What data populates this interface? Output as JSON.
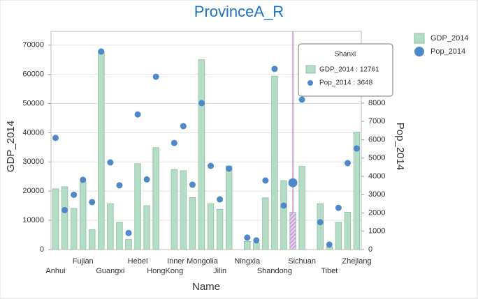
{
  "chart_data": {
    "type": "bar+scatter",
    "title": "ProvinceA_R",
    "x_label": "Name",
    "y_label": "GDP_2014",
    "y2_label": "Pop_2014",
    "categories": [
      "Anhui",
      null,
      null,
      "Fujian",
      null,
      null,
      "Guangxi",
      null,
      null,
      "Hebei",
      null,
      null,
      "HongKong",
      null,
      null,
      "Inner Mongolia",
      null,
      null,
      "Jilin",
      null,
      null,
      "Ningxia",
      null,
      null,
      "Shandong",
      null,
      null,
      "Sichuan",
      null,
      null,
      "Tibet",
      null,
      null,
      "Zhejiang"
    ],
    "series": [
      {
        "name": "GDP_2014",
        "type": "bar",
        "color": "#b5dcc6",
        "values": [
          20800,
          21500,
          14100,
          23400,
          6800,
          67800,
          15700,
          9300,
          3500,
          29400,
          15000,
          34900,
          null,
          27400,
          27000,
          17800,
          65000,
          15700,
          13800,
          28600,
          null,
          2800,
          2300,
          17700,
          59400,
          23600,
          12761,
          28500,
          null,
          15700,
          900,
          9300,
          12800,
          40200
        ]
      },
      {
        "name": "Pop_2014",
        "type": "scatter",
        "axis": "y2",
        "color": "#4f88c8",
        "values": [
          6100,
          2150,
          2990,
          3810,
          2590,
          10820,
          4760,
          3510,
          900,
          7380,
          3830,
          9440,
          null,
          5820,
          6740,
          3540,
          8000,
          4570,
          2740,
          4420,
          null,
          650,
          500,
          3770,
          9870,
          2400,
          3648,
          8190,
          null,
          1490,
          270,
          2280,
          4720,
          5520
        ]
      }
    ],
    "ylim": [
      0,
      74700
    ],
    "yticks": [
      0,
      10000,
      20000,
      30000,
      40000,
      50000,
      60000,
      70000
    ],
    "y2lim": [
      0,
      11920
    ],
    "y2ticks": [
      0,
      1000,
      2000,
      3000,
      4000,
      5000,
      6000,
      7000,
      8000
    ],
    "grid": true,
    "legend": "top-right",
    "tooltip": {
      "title": "Shanxi",
      "rows": [
        "GDP_2014 : 12761",
        "Pop_2014 : 3648"
      ]
    }
  }
}
